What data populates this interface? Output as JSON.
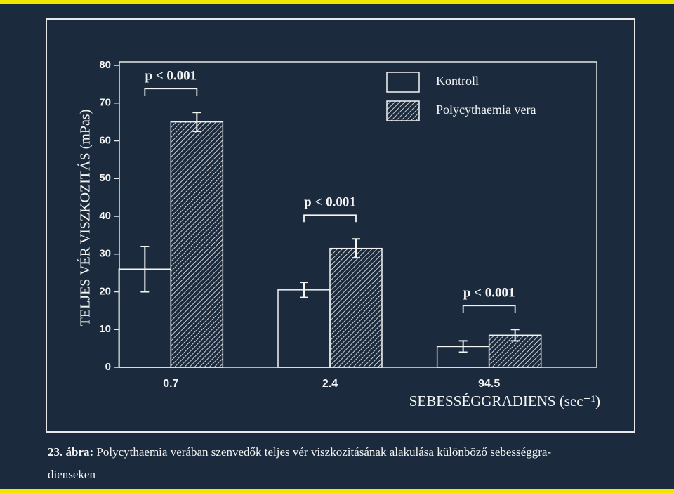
{
  "chart_data": {
    "type": "bar",
    "y_label": "TELJES VÉR VISZKOZITÁS (mPas)",
    "x_label": "SEBESSÉGGRADIENS (sec⁻¹)",
    "categories": [
      "0.7",
      "2.4",
      "94.5"
    ],
    "series": [
      {
        "name": "Kontroll",
        "color": "#f4f4f4",
        "hatch": false,
        "values": [
          26,
          20.5,
          5.5
        ],
        "errors": [
          6,
          2,
          1.5
        ]
      },
      {
        "name": "Polycythaemia vera",
        "color": "#f4f4f4",
        "hatch": true,
        "values": [
          65,
          31.5,
          8.5
        ],
        "errors": [
          2.5,
          2.5,
          1.5
        ]
      }
    ],
    "annotations": [
      "p < 0.001",
      "p < 0.001",
      "p < 0.001"
    ],
    "ylim": [
      0,
      80
    ],
    "yticks": [
      0,
      10,
      20,
      30,
      40,
      50,
      60,
      70,
      80
    ],
    "legend": "upper right",
    "grid": false
  },
  "caption": {
    "label": "23. ábra:",
    "line1": "Polycythaemia verában szenvedők teljes vér viszkozitásának alakulása különböző sebességgra-",
    "line2": "dienseken"
  }
}
